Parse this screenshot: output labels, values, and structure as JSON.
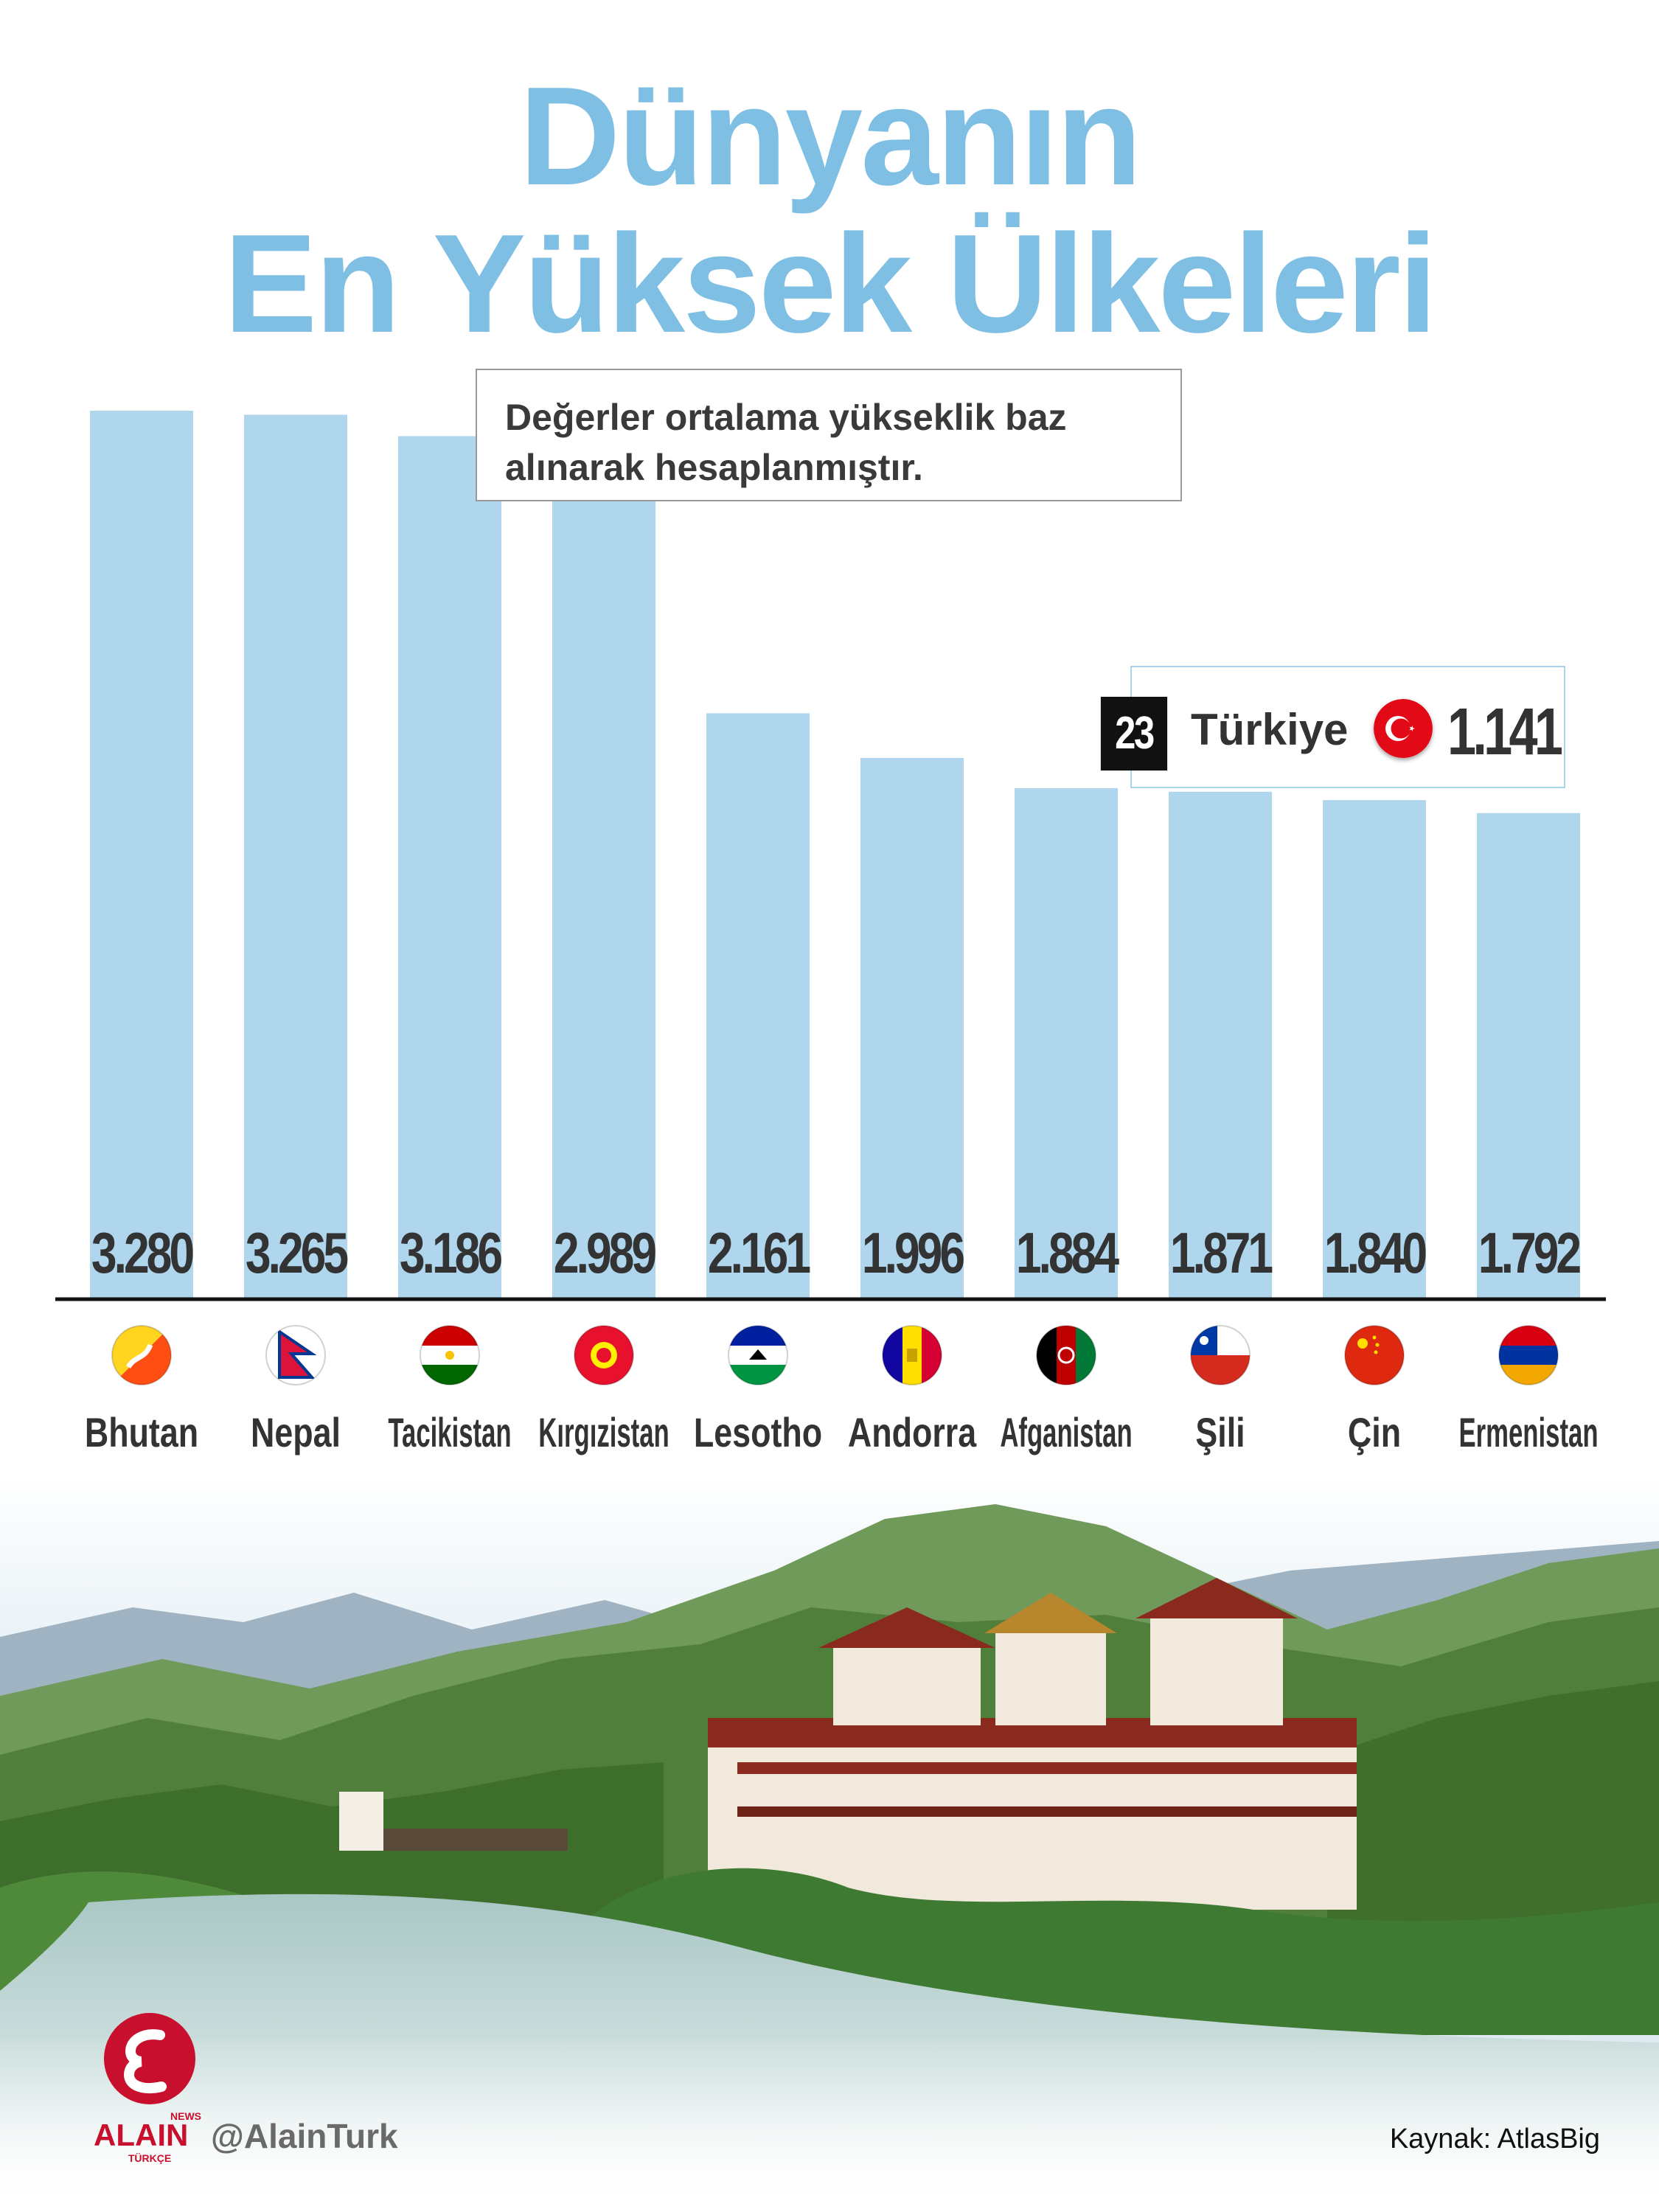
{
  "title_line1": "Dünyanın",
  "title_line2": "En Yüksek Ülkeleri",
  "note": "Değerler ortalama yükseklik baz alınarak hesaplanmıştır.",
  "highlight": {
    "rank": "23",
    "country": "Türkiye",
    "value": "1.141",
    "flag_icon": "turkey-flag-icon"
  },
  "chart_data": {
    "type": "bar",
    "categories": [
      "Bhutan",
      "Nepal",
      "Tacikistan",
      "Kırgızistan",
      "Lesotho",
      "Andorra",
      "Afganistan",
      "Şili",
      "Çin",
      "Ermenistan"
    ],
    "values": [
      3280,
      3265,
      3186,
      2989,
      2161,
      1996,
      1884,
      1871,
      1840,
      1792
    ],
    "value_labels": [
      "3.280",
      "3.265",
      "3.186",
      "2.989",
      "2.161",
      "1.996",
      "1.884",
      "1.871",
      "1.840",
      "1.792"
    ],
    "title": "Dünyanın En Yüksek Ülkeleri",
    "xlabel": "",
    "ylabel": "",
    "ylim": [
      0,
      3400
    ],
    "grid": false,
    "bar_color": "#afd6ed"
  },
  "flags": [
    "bhutan-flag-icon",
    "nepal-flag-icon",
    "tajikistan-flag-icon",
    "kyrgyzstan-flag-icon",
    "lesotho-flag-icon",
    "andorra-flag-icon",
    "afghanistan-flag-icon",
    "chile-flag-icon",
    "china-flag-icon",
    "armenia-flag-icon"
  ],
  "brand": {
    "logo_text": "ALAIN",
    "logo_small_top": "NEWS",
    "logo_small_bottom": "TÜRKÇE",
    "handle": "@AlainTurk"
  },
  "source": "Kaynak: AtlasBig",
  "colors": {
    "title": "#7fbfe3",
    "bar": "#afd6ed",
    "label": "#333333",
    "brand_red": "#c8102e"
  }
}
